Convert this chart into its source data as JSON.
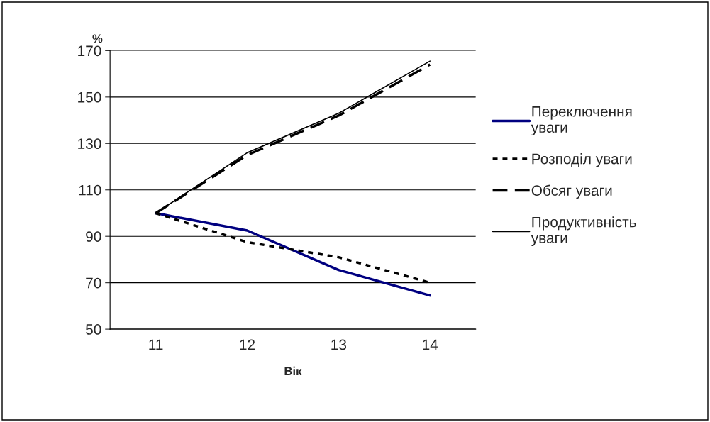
{
  "chart_data": {
    "type": "line",
    "xlabel": "Вік",
    "ylabel": "%",
    "categories": [
      "11",
      "12",
      "13",
      "14"
    ],
    "series": [
      {
        "name": "Переключення уваги",
        "color": "#000080",
        "line_style": "solid",
        "values": [
          100,
          92.5,
          75.5,
          64.5
        ]
      },
      {
        "name": "Розподіл уваги",
        "color": "#000000",
        "line_style": "dotted",
        "values": [
          100,
          87.5,
          81,
          70
        ]
      },
      {
        "name": "Обсяг уваги",
        "color": "#000000",
        "line_style": "dashed",
        "values": [
          100,
          125,
          142,
          164
        ]
      },
      {
        "name": "Продуктивність уваги",
        "color": "#000000",
        "line_style": "solid",
        "values": [
          100,
          126,
          143,
          165.5
        ]
      }
    ],
    "ylim": [
      50,
      170
    ],
    "yticks": [
      50,
      70,
      90,
      110,
      130,
      150,
      170
    ],
    "grid": "y",
    "legend": "right",
    "marker": "none"
  }
}
